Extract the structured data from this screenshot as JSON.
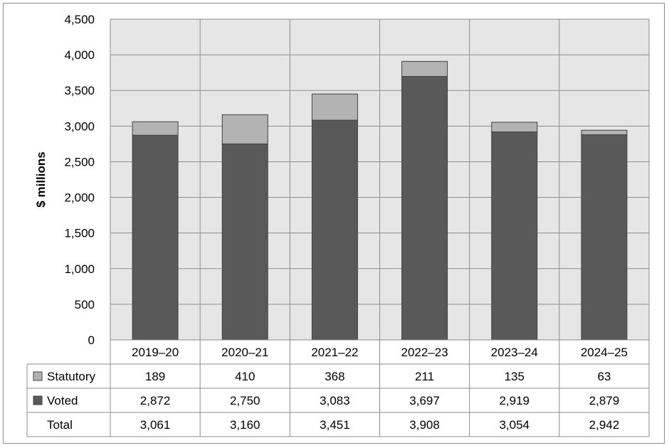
{
  "chart_data": {
    "type": "bar",
    "stacked": true,
    "categories": [
      "2019–20",
      "2020–21",
      "2021–22",
      "2022–23",
      "2023–24",
      "2024–25"
    ],
    "series": [
      {
        "name": "Voted",
        "values": [
          2872,
          2750,
          3083,
          3697,
          2919,
          2879
        ],
        "color": "#595959"
      },
      {
        "name": "Statutory",
        "values": [
          189,
          410,
          368,
          211,
          135,
          63
        ],
        "color": "#b3b3b3"
      }
    ],
    "ylabel": "$ millions",
    "ylim": [
      0,
      4500
    ],
    "yticks": [
      0,
      500,
      1000,
      1500,
      2000,
      2500,
      3000,
      3500,
      4000,
      4500
    ],
    "ytick_labels": [
      "0",
      "500",
      "1,000",
      "1,500",
      "2,000",
      "2,500",
      "3,000",
      "3,500",
      "4,000",
      "4,500"
    ],
    "grid": true,
    "plot_background": "#e6e6e6",
    "data_table": {
      "rows": [
        {
          "label": "Statutory",
          "color": "#b3b3b3",
          "values": [
            "189",
            "410",
            "368",
            "211",
            "135",
            "63"
          ]
        },
        {
          "label": "Voted",
          "color": "#595959",
          "values": [
            "2,872",
            "2,750",
            "3,083",
            "3,697",
            "2,919",
            "2,879"
          ]
        },
        {
          "label": "Total",
          "color": null,
          "values": [
            "3,061",
            "3,160",
            "3,451",
            "3,908",
            "3,054",
            "2,942"
          ]
        }
      ]
    }
  }
}
